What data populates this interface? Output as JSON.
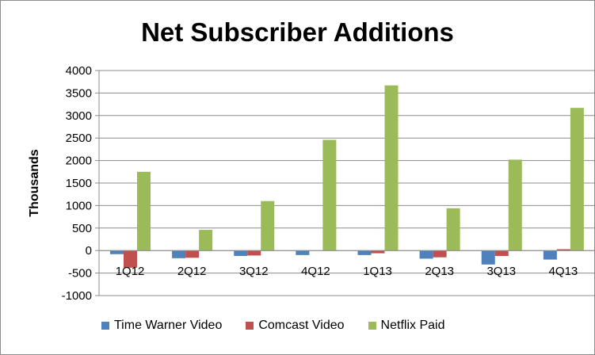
{
  "chart_data": {
    "type": "bar",
    "title": "Net Subscriber Additions",
    "ylabel": "Thousands",
    "xlabel": "",
    "categories": [
      "1Q12",
      "2Q12",
      "3Q12",
      "4Q12",
      "1Q13",
      "2Q13",
      "3Q13",
      "4Q13"
    ],
    "ylim": [
      -1000,
      4000
    ],
    "yticks": [
      4000,
      3500,
      3000,
      2500,
      2000,
      1500,
      1000,
      500,
      0,
      -500,
      -1000
    ],
    "grid": "horizontal",
    "legend_position": "bottom",
    "series": [
      {
        "name": "Time Warner Video",
        "color": "#4f81bd",
        "values": [
          -80,
          -170,
          -120,
          -100,
          -100,
          -180,
          -310,
          -200
        ]
      },
      {
        "name": "Comcast Video",
        "color": "#c0504d",
        "values": [
          -380,
          -160,
          -110,
          0,
          -60,
          -150,
          -120,
          30
        ]
      },
      {
        "name": "Netflix Paid",
        "color": "#9bbb59",
        "values": [
          1750,
          460,
          1100,
          2460,
          3670,
          940,
          2020,
          3170
        ]
      }
    ]
  }
}
